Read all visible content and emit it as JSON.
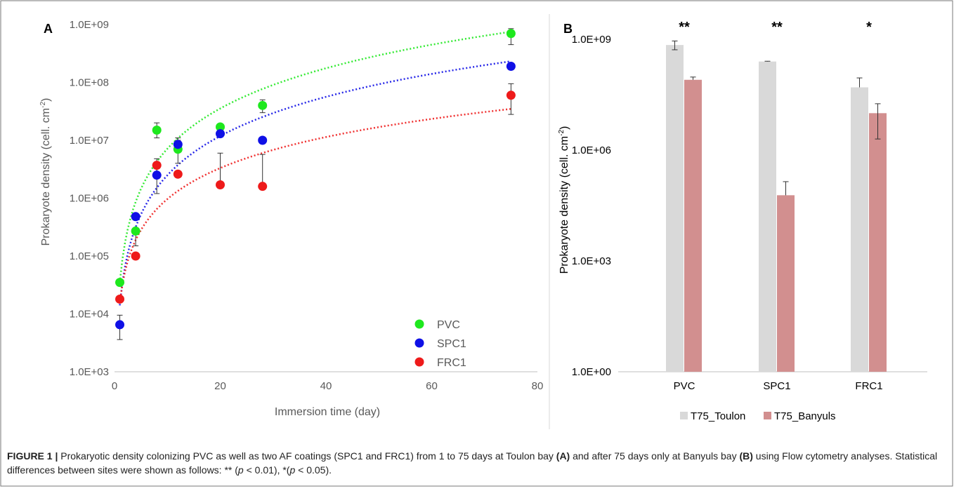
{
  "figure": {
    "caption": {
      "label": "FIGURE 1 |",
      "part1": " Prokaryotic density colonizing PVC as well as two AF coatings (SPC1 and FRC1) from 1 to 75 days at Toulon bay ",
      "ref_a": "(A)",
      "part2": " and after 75 days only at Banyuls bay ",
      "ref_b": "(B)",
      "part3": " using Flow cytometry analyses. Statistical differences between sites were shown as follows: ** (",
      "p_symbol": "p",
      "part4": " < 0.01), *(",
      "part5": " < 0.05)."
    }
  },
  "colors": {
    "pvc": "#1ee81e",
    "spc1": "#0f10e6",
    "frc1": "#ee1a1a",
    "toulon": "#d9d9d9",
    "banyuls": "#d28f8f",
    "axis": "#bfbfbf",
    "text": "#595959"
  },
  "chart_data": [
    {
      "panel": "A",
      "type": "scatter",
      "xlabel": "Immersion time (day)",
      "ylabel": "Prokaryote density  (cell. cm-2)",
      "xlim": [
        0,
        80
      ],
      "ylim": [
        1000,
        1000000000
      ],
      "yscale": "log",
      "x_ticks": [
        "0",
        "20",
        "40",
        "60",
        "80"
      ],
      "y_ticks": [
        "1.0E+03",
        "1.0E+04",
        "1.0E+05",
        "1.0E+06",
        "1.0E+07",
        "1.0E+08",
        "1.0E+09"
      ],
      "legend": "bottom-right",
      "trendline": "power",
      "series": [
        {
          "name": "PVC",
          "color": "#1ee81e",
          "x": [
            1,
            4,
            8,
            12,
            20,
            28,
            75
          ],
          "y": [
            35000,
            270000,
            15000000,
            7000000,
            17000000,
            40000000,
            700000000
          ],
          "err_low": [
            null,
            150000,
            11000000,
            4000000,
            null,
            30000000,
            450000000
          ],
          "err_high": [
            null,
            300000,
            20000000,
            10000000,
            null,
            50000000,
            850000000
          ],
          "fit": {
            "a": 35000,
            "b": 2.31
          }
        },
        {
          "name": "SPC1",
          "color": "#0f10e6",
          "x": [
            1,
            4,
            8,
            12,
            20,
            28,
            75
          ],
          "y": [
            6500,
            480000,
            2500000,
            8500000,
            13000000,
            10000000,
            190000000
          ],
          "err_low": [
            3600,
            null,
            1200000,
            null,
            null,
            null,
            null
          ],
          "err_high": [
            9500,
            null,
            3800000,
            11000000,
            null,
            null,
            null
          ],
          "fit": {
            "a": 14000,
            "b": 2.25
          }
        },
        {
          "name": "FRC1",
          "color": "#ee1a1a",
          "x": [
            1,
            4,
            8,
            12,
            20,
            28,
            75
          ],
          "y": [
            18000,
            100000,
            3700000,
            2600000,
            1700000,
            1600000,
            60000000
          ],
          "err_low": [
            null,
            null,
            2400000,
            null,
            null,
            null,
            28000000
          ],
          "err_high": [
            null,
            null,
            4800000,
            null,
            6000000,
            5700000,
            95000000
          ],
          "fit": {
            "a": 16000,
            "b": 1.78
          }
        }
      ]
    },
    {
      "panel": "B",
      "type": "bar",
      "ylabel": "Prokaryote density  (cell. cm-2)",
      "yscale": "log",
      "ylim": [
        1,
        1000000000
      ],
      "y_ticks": [
        "1.0E+00",
        "1.0E+03",
        "1.0E+06",
        "1.0E+09"
      ],
      "categories": [
        "PVC",
        "SPC1",
        "FRC1"
      ],
      "significance": [
        "**",
        "**",
        "*"
      ],
      "legend": "bottom",
      "series": [
        {
          "name": "T75_Toulon",
          "color": "#d9d9d9",
          "values": [
            700000000,
            250000000,
            50000000
          ],
          "err": [
            [
              520000000,
              900000000
            ],
            [
              250000000,
              255000000
            ],
            [
              50000000,
              90000000
            ]
          ]
        },
        {
          "name": "T75_Banyuls",
          "color": "#d28f8f",
          "values": [
            80000000,
            60000,
            10000000
          ],
          "err": [
            [
              80000000,
              95000000
            ],
            [
              60000,
              140000
            ],
            [
              2000000,
              18000000
            ]
          ]
        }
      ]
    }
  ]
}
